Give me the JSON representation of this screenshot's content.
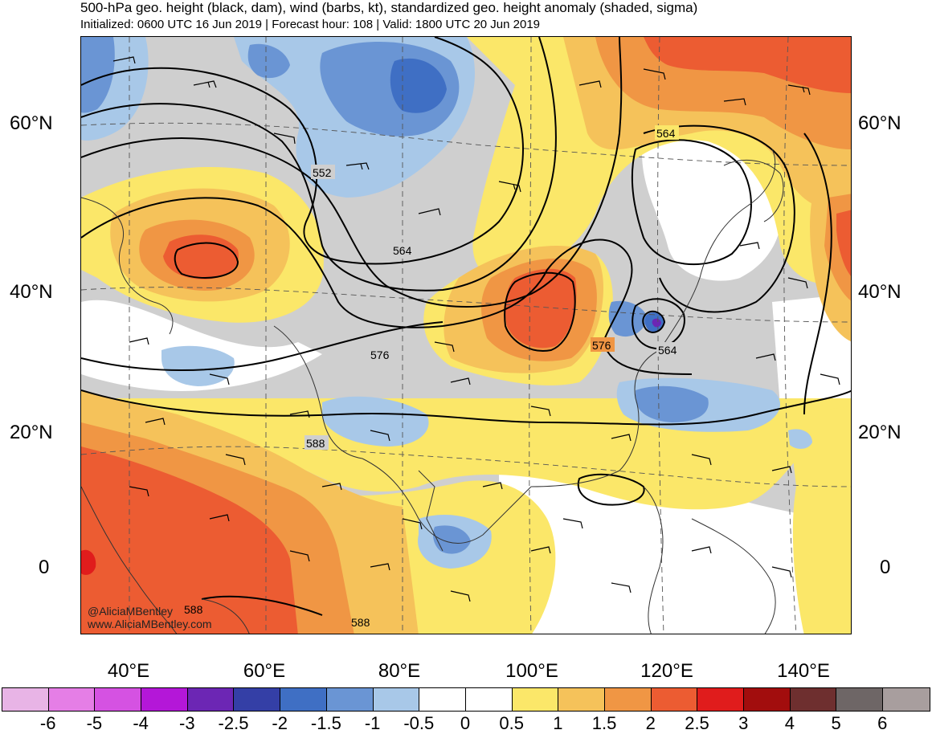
{
  "header": {
    "title": "500-hPa geo. height (black, dam), wind (barbs, kt), standardized geo. height anomaly (shaded, sigma)",
    "subtitle": "Initialized: 0600 UTC 16 Jun 2019 | Forecast hour: 108 | Valid: 1800 UTC 20 Jun 2019"
  },
  "map": {
    "watermark_line1": "@AliciaMBentley",
    "watermark_line2": "www.AliciaMBentley.com",
    "contour_labels": [
      "552",
      "564",
      "564",
      "576",
      "576",
      "564",
      "588",
      "588",
      "588"
    ],
    "lat_labels_left": [
      "60°N",
      "40°N",
      "20°N",
      "0"
    ],
    "lat_labels_right": [
      "60°N",
      "40°N",
      "20°N",
      "0"
    ],
    "lon_labels": [
      "40°E",
      "60°E",
      "80°E",
      "100°E",
      "120°E",
      "140°E"
    ]
  },
  "colorbar": {
    "labels": [
      "-6",
      "-5",
      "-4",
      "-3",
      "-2.5",
      "-2",
      "-1.5",
      "-1",
      "-0.5",
      "0",
      "0.5",
      "1",
      "1.5",
      "2",
      "2.5",
      "3",
      "4",
      "5",
      "6"
    ],
    "colors": [
      "#e8b4e6",
      "#e57ee6",
      "#d552e2",
      "#b417d8",
      "#6c26b4",
      "#343fa6",
      "#3f6fc4",
      "#6a95d4",
      "#a8c8e8",
      "#ffffff",
      "#ffffff",
      "#fbe769",
      "#f5c25a",
      "#f09644",
      "#ec5c32",
      "#e01c1c",
      "#a20d0d",
      "#6e2f2f",
      "#6e6666",
      "#a89e9e"
    ]
  }
}
